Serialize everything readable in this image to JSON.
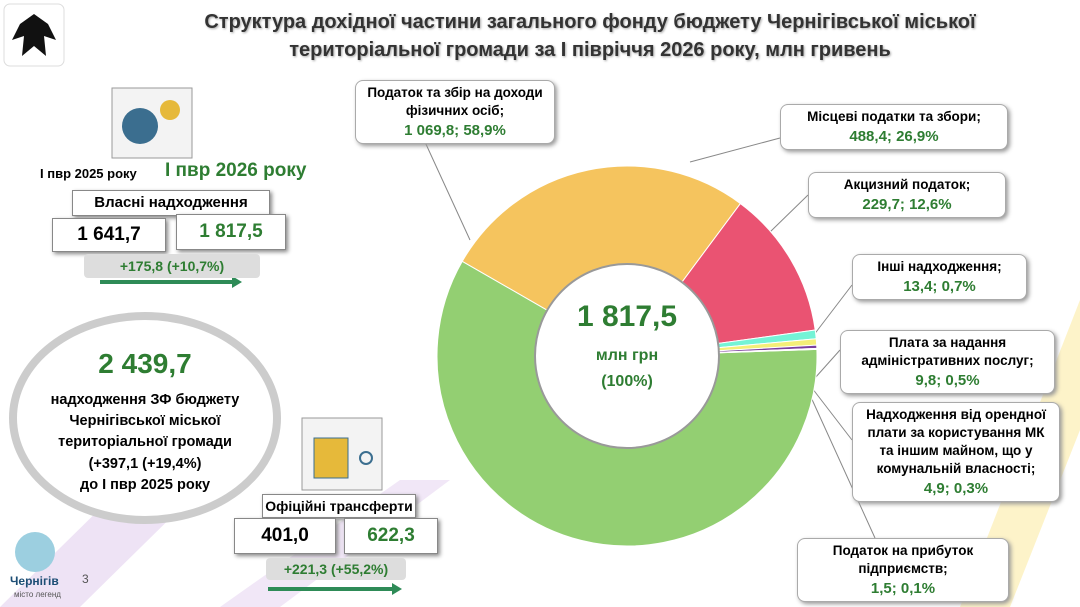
{
  "chart_data": {
    "type": "donut",
    "title": "Структура дохідної частини загального фонду бюджету Чернігівської міської територіальної громади за І півріччя 2026 року, млн гривень",
    "categories": [
      "Податок та збір на доходи фізичних осіб;",
      "Місцеві податки та збори;",
      "Акцизний податок;",
      "Інші надходження;",
      "Плата за надання адміністративних послуг;",
      "Надходження від орендної плати за користування МК та іншим майном, що у комунальній власності;",
      "Податок на прибуток підприємств;"
    ],
    "values": [
      1069.8,
      488.4,
      229.7,
      13.4,
      9.8,
      4.9,
      1.5
    ],
    "value_labels": [
      "1 069,8; 58,9%",
      "488,4;  26,9%",
      "229,7; 12,6%",
      "13,4; 0,7%",
      "9,8; 0,5%",
      "4,9; 0,3%",
      "1,5; 0,1%"
    ],
    "colors": [
      "#93cf72",
      "#f5c45e",
      "#ea5372",
      "#74f3d6",
      "#f4ef78",
      "#7b3f9e",
      "#cfdcef"
    ],
    "center_value": "1 817,5",
    "center_unit": "млн грн",
    "center_share": "(100%)"
  },
  "own_revenue": {
    "period_prev": "І пвр 2025 року",
    "period_curr": "І пвр 2026 року",
    "title": "Власні надходження",
    "prev": "1 641,7",
    "curr": "1 817,5",
    "change": "+175,8 (+10,7%)"
  },
  "summary": {
    "total": "2 439,7",
    "text": "надходження ЗФ бюджету Чернігівської міської територіальної громади",
    "change": "(+397,1 (+19,4%)",
    "compare": "до І пвр 2025 року"
  },
  "transfers": {
    "title": "Офіційні трансферти",
    "prev": "401,0",
    "curr": "622,3",
    "change": "+221,3 (+55,2%)"
  },
  "footer": {
    "city": "Чернігів",
    "motto": "місто легенд",
    "page": "3"
  }
}
